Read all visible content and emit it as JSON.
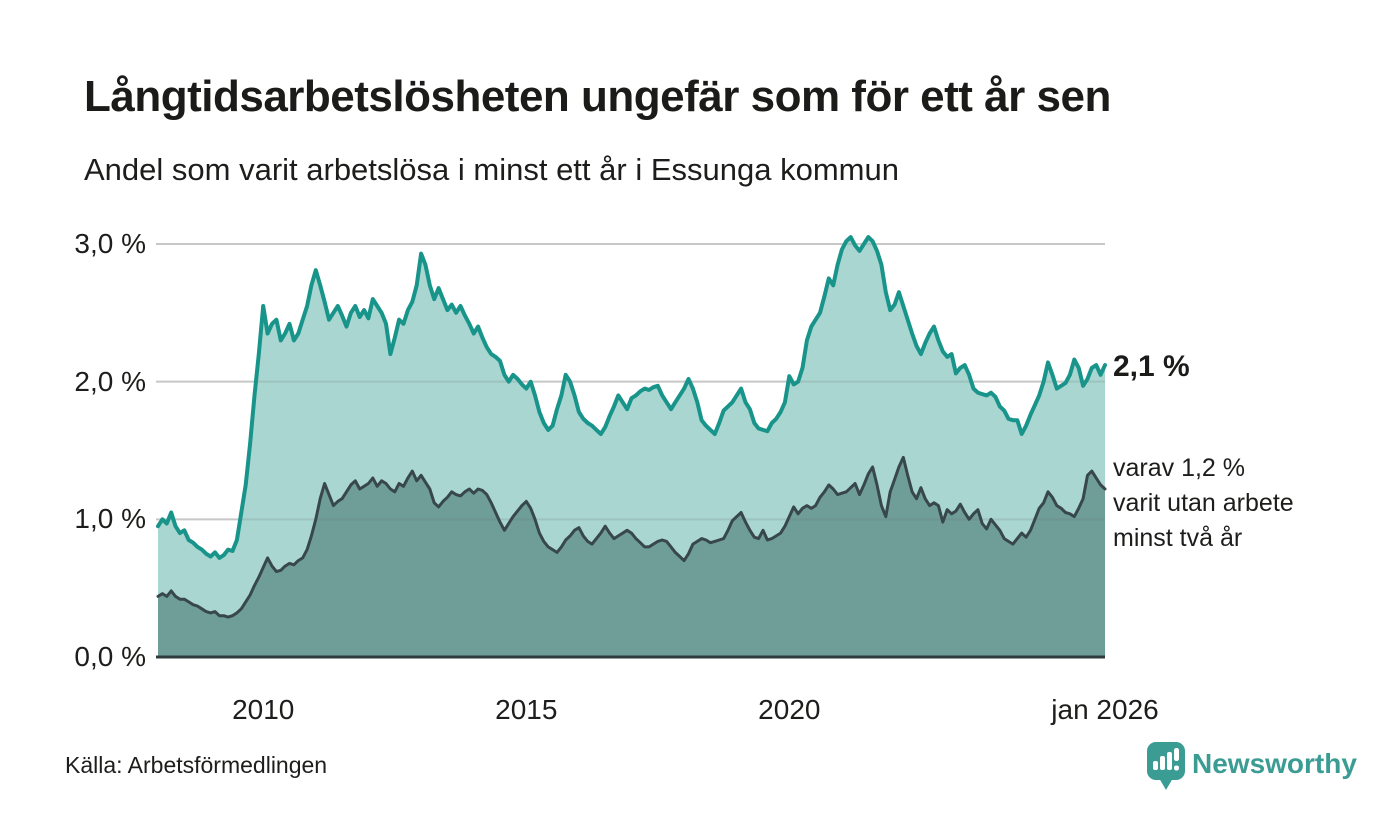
{
  "header": {
    "title": "Långtidsarbetslösheten ungefär som för ett år sen",
    "subtitle": "Andel som varit arbetslösa i minst ett år i Essunga kommun"
  },
  "annotations": {
    "latest_value": "2,1 %",
    "secondary_note": "varav 1,2 %\nvarit utan arbete\nminst två år"
  },
  "footer": {
    "source": "Källa: Arbetsförmedlingen",
    "brand": "Newsworthy"
  },
  "colors": {
    "line_one_year": "#18948a",
    "fill_one_year": "#a9d6d0",
    "line_two_years": "#37474a",
    "fill_two_years": "#6f9e98",
    "grid": "#dcdcdc",
    "axis": "#2f3a3d",
    "text": "#1d1d1b",
    "brand_teal": "#3b9c94"
  },
  "chart_data": {
    "type": "area",
    "title": "Långtidsarbetslösheten ungefär som för ett år sen",
    "subtitle": "Andel som varit arbetslösa i minst ett år i Essunga kommun",
    "x_unit": "decimal_year",
    "x_start": 2008.0,
    "points_per_year": 12,
    "xlim": [
      2008,
      2026
    ],
    "ylim": [
      0,
      3
    ],
    "grid": true,
    "legend_position": "right-annotations",
    "yticks": [
      {
        "value": 0,
        "label": "0,0 %"
      },
      {
        "value": 1,
        "label": "1,0 %"
      },
      {
        "value": 2,
        "label": "2,0 %"
      },
      {
        "value": 3,
        "label": "3,0 %"
      }
    ],
    "xticks": [
      {
        "value": 2010,
        "label": "2010"
      },
      {
        "value": 2015,
        "label": "2015"
      },
      {
        "value": 2020,
        "label": "2020"
      },
      {
        "value": 2026,
        "label": "jan 2026"
      }
    ],
    "series": [
      {
        "name": "arbetslösa minst ett år",
        "last_value_label": "2,1 %",
        "last_value": 2.1,
        "values": [
          0.95,
          1.0,
          0.97,
          1.05,
          0.95,
          0.9,
          0.92,
          0.85,
          0.83,
          0.8,
          0.78,
          0.75,
          0.73,
          0.76,
          0.72,
          0.74,
          0.78,
          0.77,
          0.85,
          1.05,
          1.25,
          1.55,
          1.9,
          2.2,
          2.55,
          2.35,
          2.42,
          2.45,
          2.3,
          2.35,
          2.42,
          2.3,
          2.35,
          2.45,
          2.55,
          2.7,
          2.81,
          2.7,
          2.58,
          2.45,
          2.5,
          2.55,
          2.48,
          2.4,
          2.5,
          2.55,
          2.47,
          2.52,
          2.46,
          2.6,
          2.55,
          2.5,
          2.42,
          2.2,
          2.32,
          2.45,
          2.42,
          2.52,
          2.58,
          2.7,
          2.93,
          2.85,
          2.7,
          2.6,
          2.68,
          2.6,
          2.52,
          2.56,
          2.5,
          2.55,
          2.48,
          2.42,
          2.35,
          2.4,
          2.32,
          2.25,
          2.2,
          2.18,
          2.15,
          2.05,
          2.0,
          2.05,
          2.02,
          1.98,
          1.95,
          2.0,
          1.9,
          1.78,
          1.7,
          1.65,
          1.68,
          1.8,
          1.9,
          2.05,
          2.0,
          1.9,
          1.78,
          1.73,
          1.7,
          1.68,
          1.65,
          1.62,
          1.67,
          1.75,
          1.82,
          1.9,
          1.85,
          1.8,
          1.88,
          1.9,
          1.93,
          1.95,
          1.94,
          1.96,
          1.97,
          1.9,
          1.85,
          1.8,
          1.85,
          1.9,
          1.95,
          2.02,
          1.95,
          1.85,
          1.72,
          1.68,
          1.65,
          1.62,
          1.7,
          1.79,
          1.82,
          1.85,
          1.9,
          1.95,
          1.85,
          1.8,
          1.7,
          1.66,
          1.65,
          1.64,
          1.7,
          1.73,
          1.78,
          1.85,
          2.04,
          1.98,
          2.0,
          2.1,
          2.3,
          2.4,
          2.45,
          2.5,
          2.62,
          2.75,
          2.7,
          2.85,
          2.96,
          3.02,
          3.05,
          2.99,
          2.95,
          3.0,
          3.05,
          3.02,
          2.95,
          2.85,
          2.65,
          2.52,
          2.56,
          2.65,
          2.55,
          2.45,
          2.35,
          2.26,
          2.2,
          2.28,
          2.35,
          2.4,
          2.3,
          2.22,
          2.18,
          2.2,
          2.06,
          2.1,
          2.12,
          2.05,
          1.95,
          1.92,
          1.91,
          1.9,
          1.92,
          1.89,
          1.82,
          1.79,
          1.73,
          1.72,
          1.72,
          1.62,
          1.68,
          1.76,
          1.83,
          1.9,
          2.0,
          2.14,
          2.05,
          1.95,
          1.97,
          1.99,
          2.05,
          2.16,
          2.1,
          1.97,
          2.02,
          2.1,
          2.12,
          2.05,
          2.12
        ]
      },
      {
        "name": "varav utan arbete minst två år",
        "last_value_label": "1,2 %",
        "last_value": 1.2,
        "values": [
          0.44,
          0.46,
          0.44,
          0.48,
          0.44,
          0.42,
          0.42,
          0.4,
          0.38,
          0.37,
          0.35,
          0.33,
          0.32,
          0.33,
          0.3,
          0.3,
          0.29,
          0.3,
          0.32,
          0.35,
          0.4,
          0.45,
          0.52,
          0.58,
          0.65,
          0.72,
          0.66,
          0.62,
          0.63,
          0.66,
          0.68,
          0.67,
          0.7,
          0.72,
          0.78,
          0.88,
          1.0,
          1.15,
          1.26,
          1.18,
          1.1,
          1.13,
          1.15,
          1.2,
          1.25,
          1.28,
          1.22,
          1.24,
          1.26,
          1.3,
          1.24,
          1.28,
          1.26,
          1.22,
          1.2,
          1.26,
          1.24,
          1.3,
          1.35,
          1.28,
          1.32,
          1.27,
          1.22,
          1.12,
          1.09,
          1.13,
          1.16,
          1.2,
          1.18,
          1.17,
          1.2,
          1.22,
          1.19,
          1.22,
          1.21,
          1.18,
          1.12,
          1.05,
          0.98,
          0.92,
          0.97,
          1.02,
          1.06,
          1.1,
          1.13,
          1.08,
          1.0,
          0.9,
          0.84,
          0.8,
          0.78,
          0.76,
          0.8,
          0.85,
          0.88,
          0.92,
          0.94,
          0.88,
          0.84,
          0.82,
          0.86,
          0.9,
          0.95,
          0.9,
          0.86,
          0.88,
          0.9,
          0.92,
          0.9,
          0.86,
          0.83,
          0.8,
          0.8,
          0.82,
          0.84,
          0.85,
          0.84,
          0.8,
          0.76,
          0.73,
          0.7,
          0.75,
          0.82,
          0.84,
          0.86,
          0.85,
          0.83,
          0.84,
          0.85,
          0.86,
          0.92,
          0.99,
          1.02,
          1.05,
          0.98,
          0.92,
          0.87,
          0.86,
          0.92,
          0.85,
          0.86,
          0.88,
          0.9,
          0.95,
          1.02,
          1.09,
          1.04,
          1.08,
          1.1,
          1.08,
          1.1,
          1.16,
          1.2,
          1.25,
          1.22,
          1.18,
          1.19,
          1.2,
          1.23,
          1.26,
          1.18,
          1.25,
          1.33,
          1.38,
          1.25,
          1.1,
          1.02,
          1.2,
          1.29,
          1.38,
          1.45,
          1.32,
          1.2,
          1.15,
          1.23,
          1.15,
          1.1,
          1.12,
          1.1,
          0.98,
          1.07,
          1.04,
          1.06,
          1.11,
          1.05,
          1.0,
          1.04,
          1.07,
          0.97,
          0.93,
          1.0,
          0.96,
          0.92,
          0.86,
          0.84,
          0.82,
          0.86,
          0.9,
          0.87,
          0.92,
          1.0,
          1.08,
          1.12,
          1.2,
          1.16,
          1.1,
          1.08,
          1.05,
          1.04,
          1.02,
          1.08,
          1.15,
          1.32,
          1.35,
          1.3,
          1.25,
          1.22
        ]
      }
    ]
  }
}
